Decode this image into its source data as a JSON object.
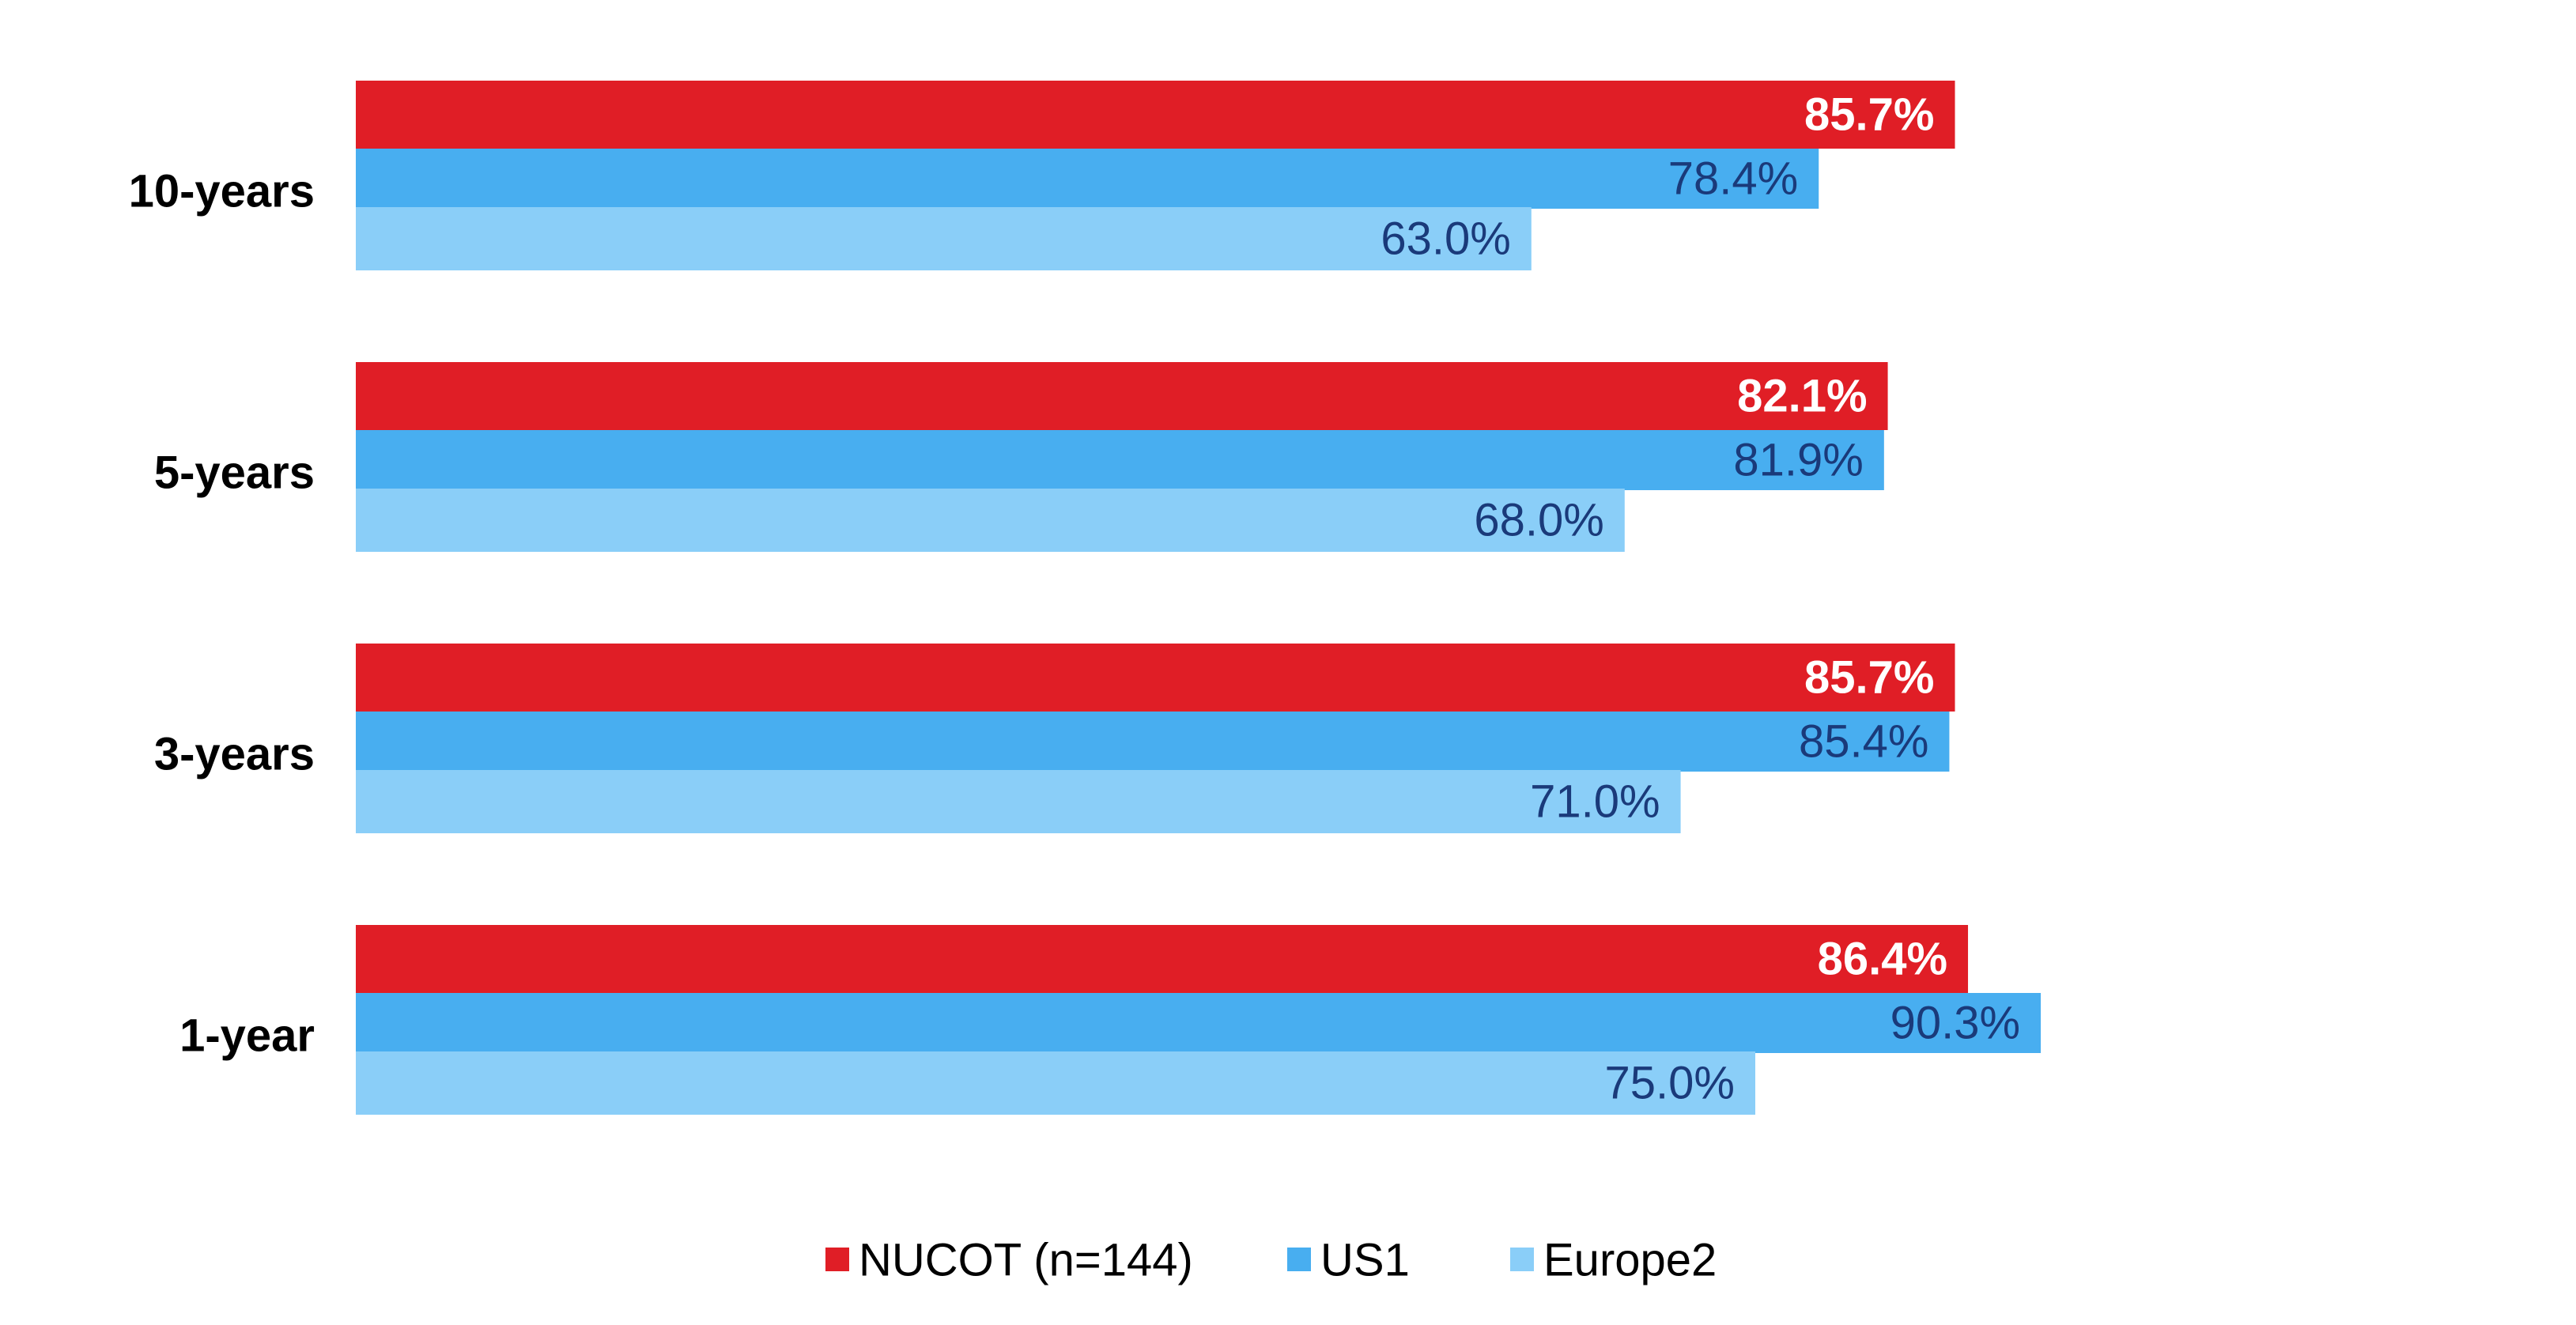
{
  "chart_data": {
    "type": "bar",
    "orientation": "horizontal",
    "categories": [
      "10-years",
      "5-years",
      "3-years",
      "1-year"
    ],
    "series": [
      {
        "name": "NUCOT (n=144)",
        "color": "#E01E26",
        "values": [
          85.7,
          82.1,
          85.7,
          86.4
        ],
        "labels": [
          "85.7%",
          "82.1%",
          "85.7%",
          "86.4%"
        ],
        "label_color": "#FFFFFF",
        "label_bold": true
      },
      {
        "name": "US1",
        "color": "#48AEF0",
        "values": [
          78.4,
          81.9,
          85.4,
          90.3
        ],
        "labels": [
          "78.4%",
          "81.9%",
          "85.4%",
          "90.3%"
        ],
        "label_color": "#1A3A7A",
        "label_bold": false
      },
      {
        "name": "Europe2",
        "color": "#8ACEF8",
        "values": [
          63.0,
          68.0,
          71.0,
          75.0
        ],
        "labels": [
          "63.0%",
          "68.0%",
          "71.0%",
          "75.0%"
        ],
        "label_color": "#1A3A7A",
        "label_bold": false
      }
    ],
    "xlim": [
      0,
      100
    ],
    "grid": false,
    "legend": "bottom"
  }
}
